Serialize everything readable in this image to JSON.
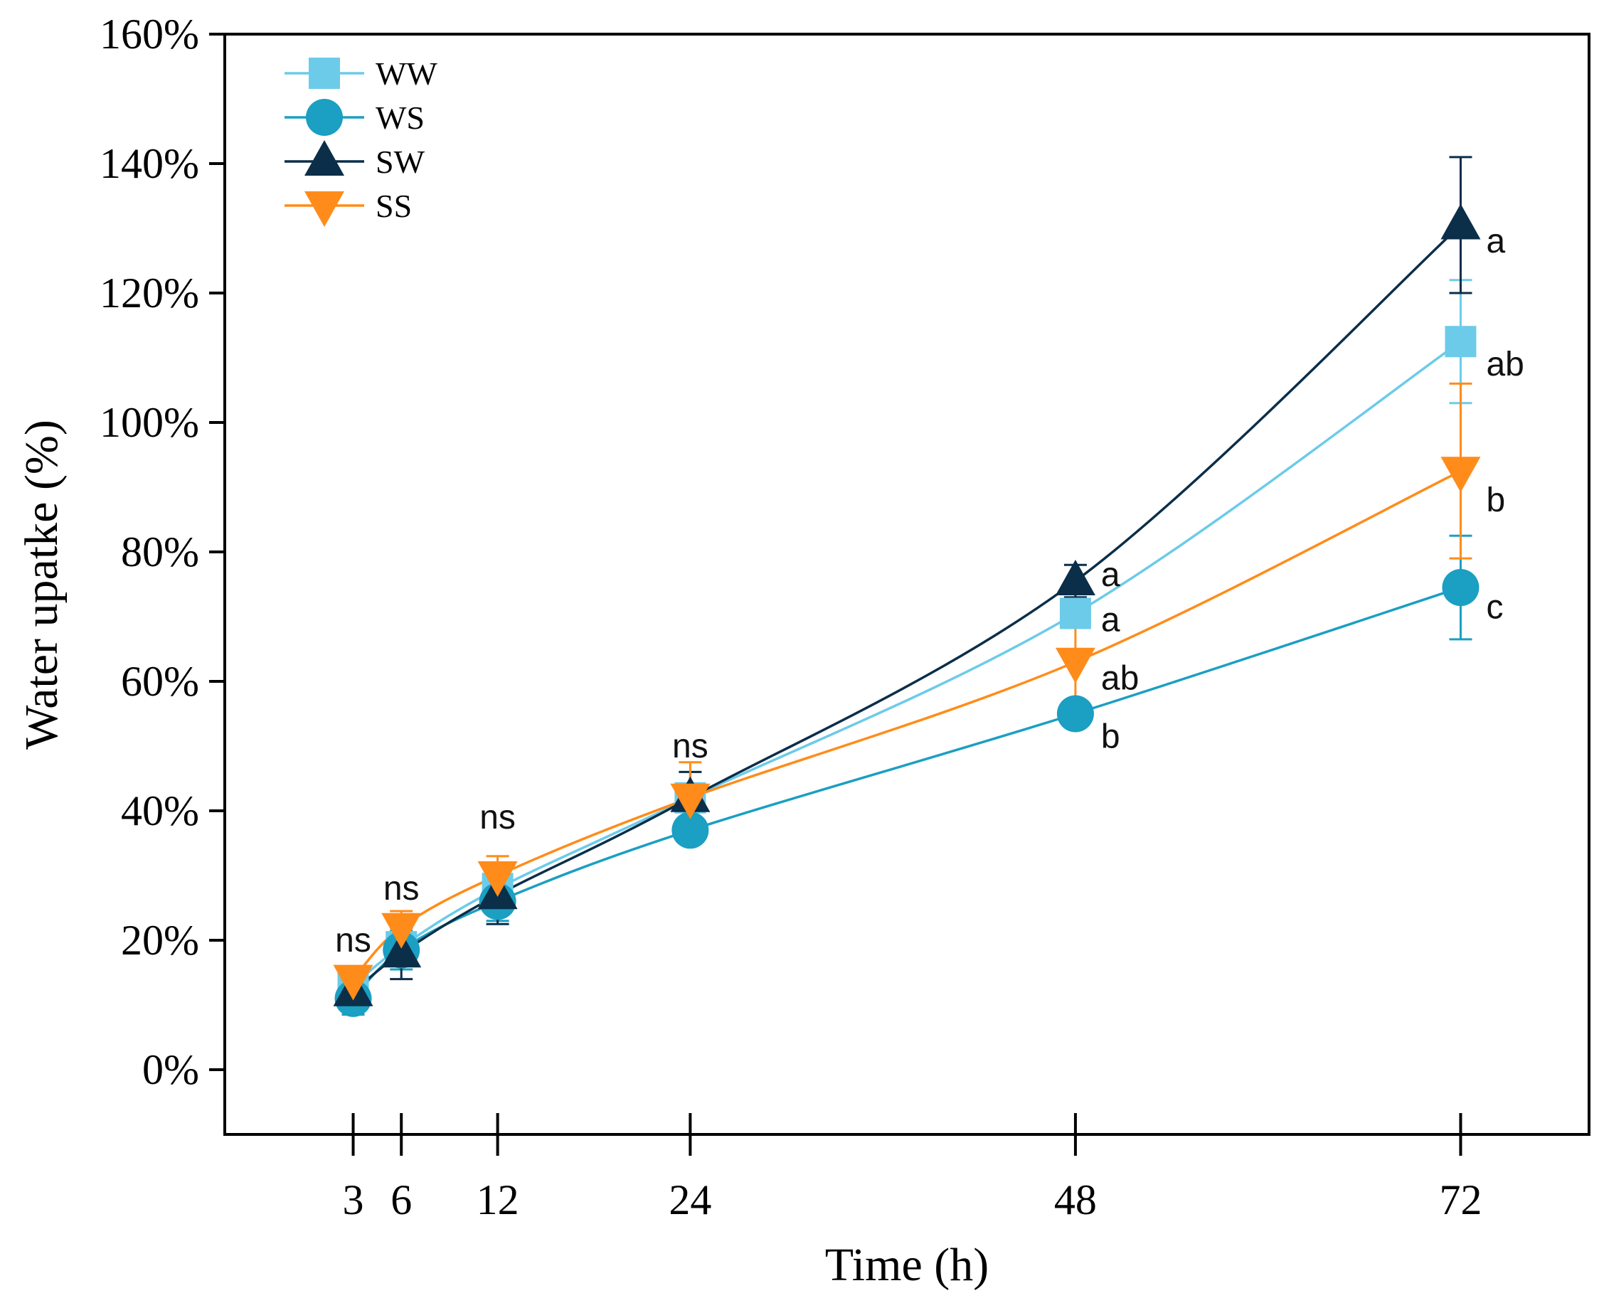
{
  "chart_data": {
    "type": "line",
    "title": "",
    "xlabel": "Time (h)",
    "ylabel": "Water upatke (%)",
    "x": [
      3,
      6,
      12,
      24,
      48,
      72
    ],
    "xticks": [
      "3",
      "6",
      "12",
      "24",
      "48",
      "72"
    ],
    "xlim": [
      -5,
      80
    ],
    "ylim": [
      -10,
      160
    ],
    "yticks": [
      0,
      20,
      40,
      60,
      80,
      100,
      120,
      140,
      160
    ],
    "ytick_labels": [
      "0%",
      "20%",
      "40%",
      "60%",
      "80%",
      "100%",
      "120%",
      "140%",
      "160%"
    ],
    "legend_position": "top-left",
    "series": [
      {
        "name": "WW",
        "color": "#6ccbe9",
        "marker": "square",
        "values": [
          13,
          19,
          28,
          42,
          70.5,
          112.5
        ],
        "errors": [
          2.5,
          3,
          3,
          4,
          1.5,
          9.5
        ]
      },
      {
        "name": "WS",
        "color": "#1b9fc2",
        "marker": "circle",
        "values": [
          11,
          18.5,
          26,
          37,
          55,
          74.5
        ],
        "errors": [
          2.5,
          3,
          3,
          2,
          1.5,
          8
        ]
      },
      {
        "name": "SW",
        "color": "#0b2e49",
        "marker": "triangle-up",
        "values": [
          12,
          18,
          27,
          42,
          75.5,
          130.5
        ],
        "errors": [
          2,
          4,
          4.5,
          4,
          2.5,
          10.5
        ]
      },
      {
        "name": "SS",
        "color": "#ff8c1a",
        "marker": "triangle-down",
        "values": [
          14,
          22,
          30,
          42,
          63,
          92.5
        ],
        "errors": [
          2,
          2.5,
          3,
          5.5,
          7,
          13.5
        ]
      }
    ],
    "annotations": [
      {
        "x": 3,
        "y": 20,
        "text": "ns"
      },
      {
        "x": 6,
        "y": 28,
        "text": "ns"
      },
      {
        "x": 12,
        "y": 39,
        "text": "ns"
      },
      {
        "x": 24,
        "y": 50,
        "text": "ns"
      },
      {
        "x": 48,
        "y": 76.5,
        "text": "a",
        "series": "SW"
      },
      {
        "x": 48,
        "y": 69.5,
        "text": "a",
        "series": "WW"
      },
      {
        "x": 48,
        "y": 60.5,
        "text": "ab",
        "series": "SS"
      },
      {
        "x": 48,
        "y": 51.5,
        "text": "b",
        "series": "WS"
      },
      {
        "x": 72,
        "y": 128,
        "text": "a",
        "series": "SW"
      },
      {
        "x": 72,
        "y": 109,
        "text": "ab",
        "series": "WW"
      },
      {
        "x": 72,
        "y": 88,
        "text": "b",
        "series": "SS"
      },
      {
        "x": 72,
        "y": 71.5,
        "text": "c",
        "series": "WS"
      }
    ]
  }
}
